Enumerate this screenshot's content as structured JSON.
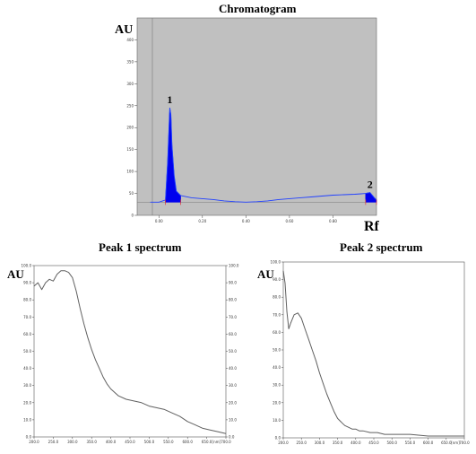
{
  "titles": {
    "chromatogram": "Chromatogram",
    "peak1": "Peak 1 spectrum",
    "peak2": "Peak 2 spectrum"
  },
  "axis_labels": {
    "au": "AU",
    "rf": "Rf"
  },
  "colors": {
    "plot_bg": "#c0c0c0",
    "peak_fill": "#0000ee",
    "baseline": "#2040ff",
    "spectrum_line": "#606060"
  },
  "chart_data": [
    {
      "type": "area",
      "title": "Chromatogram",
      "xlabel": "Rf",
      "ylabel": "AU",
      "xlim": [
        -0.1,
        1.0
      ],
      "ylim": [
        0,
        450
      ],
      "x_ticks": [
        0.0,
        0.2,
        0.4,
        0.6,
        0.8
      ],
      "x_tick_labels": [
        "0.00",
        "0.20",
        "0.40",
        "0.60",
        "0.80"
      ],
      "y_ticks": [
        0,
        50,
        100,
        150,
        200,
        250,
        300,
        350,
        400
      ],
      "peaks": [
        {
          "label": "1",
          "rf": 0.05,
          "height": 245
        },
        {
          "label": "2",
          "rf": 0.97,
          "height": 52
        }
      ],
      "trace": {
        "x": [
          -0.04,
          0.0,
          0.03,
          0.04,
          0.05,
          0.055,
          0.06,
          0.07,
          0.08,
          0.1,
          0.15,
          0.2,
          0.25,
          0.3,
          0.35,
          0.4,
          0.45,
          0.5,
          0.55,
          0.6,
          0.65,
          0.7,
          0.75,
          0.8,
          0.85,
          0.9,
          0.93,
          0.95,
          0.97,
          0.99,
          1.0
        ],
        "y": [
          30,
          30,
          35,
          120,
          245,
          230,
          160,
          90,
          55,
          45,
          40,
          38,
          36,
          33,
          31,
          30,
          31,
          33,
          36,
          38,
          40,
          42,
          44,
          46,
          47,
          48,
          49,
          50,
          52,
          40,
          35
        ]
      }
    },
    {
      "type": "line",
      "title": "Peak 1 spectrum",
      "ylabel": "AU",
      "xlabel": "[nm]",
      "xlim": [
        200,
        700
      ],
      "ylim": [
        0,
        100
      ],
      "x_ticks": [
        200,
        250,
        300,
        350,
        400,
        450,
        500,
        550,
        600,
        650,
        700
      ],
      "y_ticks": [
        0,
        10,
        20,
        30,
        40,
        50,
        60,
        70,
        80,
        90,
        100
      ],
      "series": [
        {
          "x": [
            200,
            210,
            220,
            230,
            240,
            250,
            260,
            270,
            280,
            290,
            300,
            310,
            320,
            330,
            340,
            350,
            360,
            370,
            380,
            390,
            400,
            420,
            440,
            460,
            480,
            500,
            520,
            540,
            560,
            580,
            600,
            620,
            640,
            660,
            680,
            700
          ],
          "y": [
            88,
            90,
            86,
            90,
            92,
            91,
            95,
            97,
            97,
            96,
            93,
            85,
            75,
            66,
            58,
            51,
            45,
            40,
            35,
            31,
            28,
            24,
            22,
            21,
            20,
            18,
            17,
            16,
            14,
            12,
            9,
            7,
            5,
            4,
            3,
            2
          ]
        }
      ]
    },
    {
      "type": "line",
      "title": "Peak 2 spectrum",
      "ylabel": "AU",
      "xlabel": "[nm]",
      "xlim": [
        200,
        700
      ],
      "ylim": [
        0,
        100
      ],
      "x_ticks": [
        200,
        250,
        300,
        350,
        400,
        450,
        500,
        550,
        600,
        650,
        700
      ],
      "y_ticks": [
        0,
        10,
        20,
        30,
        40,
        50,
        60,
        70,
        80,
        90,
        100
      ],
      "series": [
        {
          "x": [
            200,
            205,
            210,
            215,
            220,
            230,
            240,
            250,
            260,
            270,
            280,
            290,
            300,
            310,
            320,
            330,
            340,
            350,
            360,
            370,
            380,
            390,
            400,
            410,
            420,
            440,
            460,
            480,
            500,
            550,
            600,
            650,
            700
          ],
          "y": [
            95,
            88,
            72,
            62,
            65,
            70,
            71,
            68,
            62,
            56,
            50,
            44,
            37,
            31,
            25,
            20,
            15,
            11,
            9,
            7,
            6,
            5,
            5,
            4,
            4,
            3,
            3,
            2,
            2,
            2,
            1,
            1,
            1
          ]
        }
      ]
    }
  ]
}
